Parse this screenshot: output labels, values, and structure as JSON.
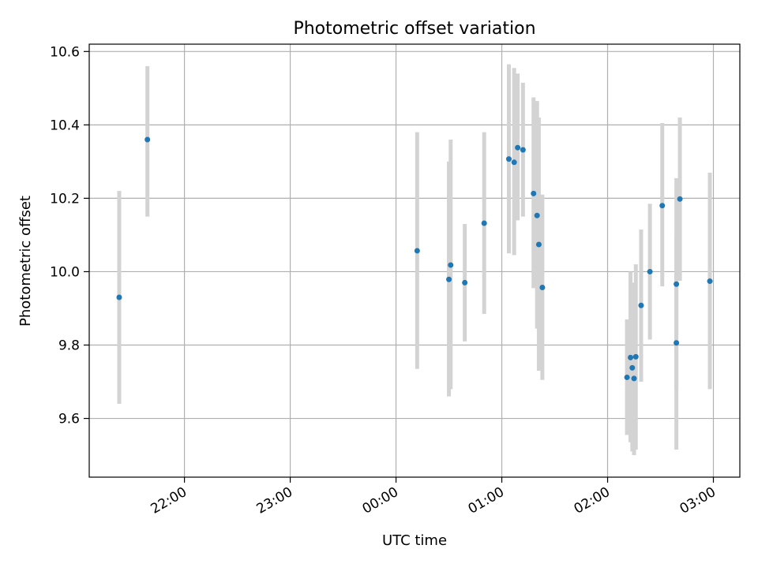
{
  "chart_data": {
    "type": "scatter",
    "title": "Photometric offset variation",
    "xlabel": "UTC time",
    "ylabel": "Photometric offset",
    "x_axis": "time",
    "xlim": [
      "21:06",
      "03:15"
    ],
    "ylim": [
      9.44,
      10.62
    ],
    "xticks": [
      "22:00",
      "23:00",
      "00:00",
      "01:00",
      "02:00",
      "03:00"
    ],
    "yticks": [
      "9.6",
      "9.8",
      "10.0",
      "10.2",
      "10.4",
      "10.6"
    ],
    "grid": true,
    "marker_color": "#1f77b4",
    "errorbar_color": "#d3d3d3",
    "points": [
      {
        "t": "21:23",
        "y": 9.93,
        "lo": 9.64,
        "hi": 10.22
      },
      {
        "t": "21:39",
        "y": 10.36,
        "lo": 10.15,
        "hi": 10.56
      },
      {
        "t": "00:12",
        "y": 10.057,
        "lo": 9.735,
        "hi": 10.38
      },
      {
        "t": "00:30",
        "y": 9.979,
        "lo": 9.66,
        "hi": 10.3
      },
      {
        "t": "00:31",
        "y": 10.018,
        "lo": 9.68,
        "hi": 10.36
      },
      {
        "t": "00:39",
        "y": 9.97,
        "lo": 9.81,
        "hi": 10.13
      },
      {
        "t": "00:50",
        "y": 10.132,
        "lo": 9.885,
        "hi": 10.38
      },
      {
        "t": "01:04",
        "y": 10.307,
        "lo": 10.05,
        "hi": 10.565
      },
      {
        "t": "01:07",
        "y": 10.298,
        "lo": 10.045,
        "hi": 10.555
      },
      {
        "t": "01:09",
        "y": 10.338,
        "lo": 10.14,
        "hi": 10.54
      },
      {
        "t": "01:12",
        "y": 10.332,
        "lo": 10.15,
        "hi": 10.515
      },
      {
        "t": "01:18",
        "y": 10.213,
        "lo": 9.955,
        "hi": 10.475
      },
      {
        "t": "01:20",
        "y": 10.153,
        "lo": 9.845,
        "hi": 10.465
      },
      {
        "t": "01:21",
        "y": 10.074,
        "lo": 9.73,
        "hi": 10.42
      },
      {
        "t": "01:23",
        "y": 9.957,
        "lo": 9.705,
        "hi": 10.21
      },
      {
        "t": "02:11",
        "y": 9.712,
        "lo": 9.555,
        "hi": 9.87
      },
      {
        "t": "02:13",
        "y": 9.766,
        "lo": 9.535,
        "hi": 10.0
      },
      {
        "t": "02:14",
        "y": 9.738,
        "lo": 9.51,
        "hi": 9.97
      },
      {
        "t": "02:15",
        "y": 9.709,
        "lo": 9.5,
        "hi": 9.92
      },
      {
        "t": "02:16",
        "y": 9.768,
        "lo": 9.515,
        "hi": 10.02
      },
      {
        "t": "02:19",
        "y": 9.908,
        "lo": 9.7,
        "hi": 10.115
      },
      {
        "t": "02:24",
        "y": 10.0,
        "lo": 9.815,
        "hi": 10.185
      },
      {
        "t": "02:31",
        "y": 10.18,
        "lo": 9.96,
        "hi": 10.405
      },
      {
        "t": "02:39",
        "y": 9.806,
        "lo": 9.515,
        "hi": 10.095
      },
      {
        "t": "02:39",
        "y": 9.966,
        "lo": 9.68,
        "hi": 10.255
      },
      {
        "t": "02:41",
        "y": 10.198,
        "lo": 9.975,
        "hi": 10.42
      },
      {
        "t": "02:58",
        "y": 9.974,
        "lo": 9.68,
        "hi": 10.27
      }
    ]
  }
}
